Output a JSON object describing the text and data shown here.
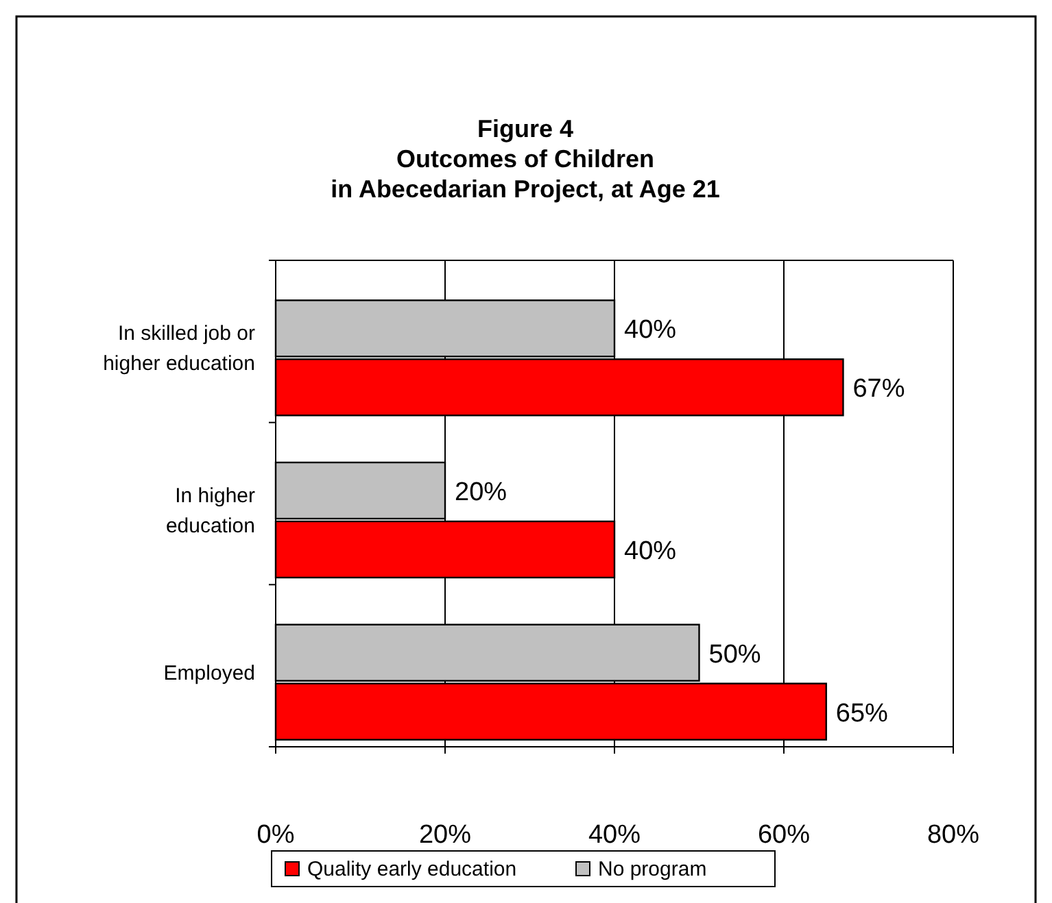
{
  "chart_data": {
    "type": "bar",
    "orientation": "horizontal",
    "title": "Figure 4\nOutcomes of Children\nin Abecedarian Project, at Age 21",
    "categories": [
      "In skilled job or higher education",
      "In higher education",
      "Employed"
    ],
    "series": [
      {
        "name": "Quality early education",
        "color": "#ff0000",
        "values": [
          67,
          40,
          65
        ]
      },
      {
        "name": "No program",
        "color": "#c0c0c0",
        "values": [
          40,
          20,
          50
        ]
      }
    ],
    "xlim": [
      0,
      80
    ],
    "xticks": [
      {
        "value": 0,
        "label": "0%"
      },
      {
        "value": 20,
        "label": "20%"
      },
      {
        "value": 40,
        "label": "40%"
      },
      {
        "value": 60,
        "label": "60%"
      },
      {
        "value": 80,
        "label": "80%"
      }
    ],
    "grid": "x",
    "legend": "bottom",
    "value_labels": [
      [
        "67%",
        "40%",
        "65%"
      ],
      [
        "40%",
        "20%",
        "50%"
      ]
    ]
  }
}
